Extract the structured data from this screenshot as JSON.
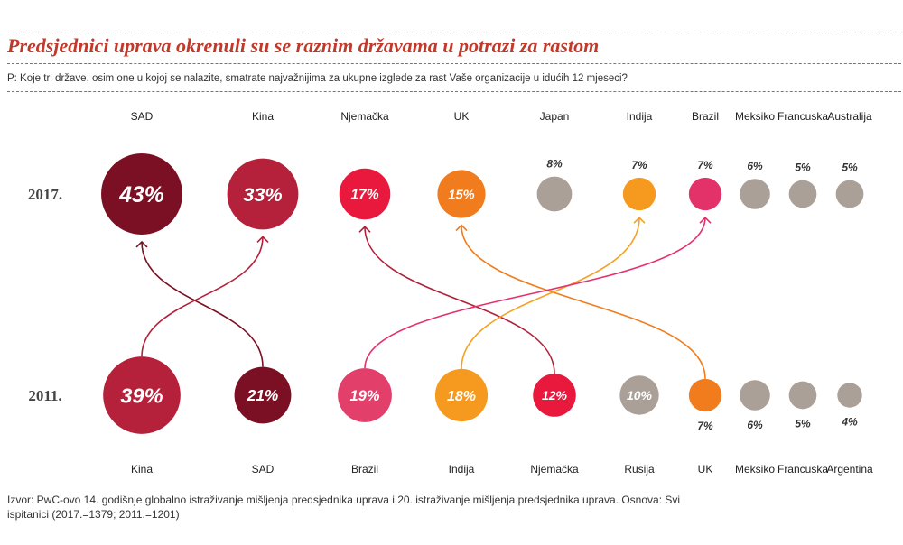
{
  "title": "Predsjednici uprava okrenuli su se raznim državama u potrazi za rastom",
  "question": "P: Koje tri države, osim one u kojoj se nalazite, smatrate najvažnijima za ukupne izglede za rast Vaše organizacije u idućih 12 mjeseci?",
  "source": "Izvor: PwC-ovo 14. godišnje globalno istraživanje mišljenja predsjednika uprava i 20. istraživanje mišljenja predsjednika uprava. Osnova: Svi ispitanici (2017.=1379; 2011.=1201)",
  "chart_data": {
    "type": "bubble",
    "series": [
      {
        "name": "2017.",
        "categories": [
          "SAD",
          "Kina",
          "Njemačka",
          "UK",
          "Japan",
          "Indija",
          "Brazil",
          "Meksiko",
          "Francuska",
          "Australija"
        ],
        "values": [
          43,
          33,
          17,
          15,
          8,
          7,
          7,
          6,
          5,
          5
        ],
        "labels": [
          "43%",
          "33%",
          "17%",
          "15%",
          "8%",
          "7%",
          "7%",
          "6%",
          "5%",
          "5%"
        ],
        "colors": [
          "#7b0f23",
          "#b5203a",
          "#e8193c",
          "#f07c1e",
          "#aaa097",
          "#f59a1f",
          "#e3326a",
          "#aaa097",
          "#aaa097",
          "#aaa097"
        ]
      },
      {
        "name": "2011.",
        "categories": [
          "Kina",
          "SAD",
          "Brazil",
          "Indija",
          "Njemačka",
          "Rusija",
          "UK",
          "Meksiko",
          "Francuska",
          "Argentina"
        ],
        "values": [
          39,
          21,
          19,
          18,
          12,
          10,
          7,
          6,
          5,
          4
        ],
        "labels": [
          "39%",
          "21%",
          "19%",
          "18%",
          "12%",
          "10%",
          "7%",
          "6%",
          "5%",
          "4%"
        ],
        "colors": [
          "#b5203a",
          "#7b0f23",
          "#e23f6b",
          "#f59a1f",
          "#e8193c",
          "#aaa097",
          "#f07c1e",
          "#aaa097",
          "#aaa097",
          "#aaa097"
        ]
      }
    ],
    "links": [
      {
        "from": "SAD",
        "to": "SAD",
        "color": "#7b0f23"
      },
      {
        "from": "Kina",
        "to": "Kina",
        "color": "#b5203a"
      },
      {
        "from": "Njemačka",
        "to": "Njemačka",
        "color": "#b0203a"
      },
      {
        "from": "UK",
        "to": "UK",
        "color": "#f07c1e"
      },
      {
        "from": "Indija",
        "to": "Indija",
        "color": "#f5a123"
      },
      {
        "from": "Brazil",
        "to": "Brazil",
        "color": "#e3326a"
      }
    ]
  }
}
